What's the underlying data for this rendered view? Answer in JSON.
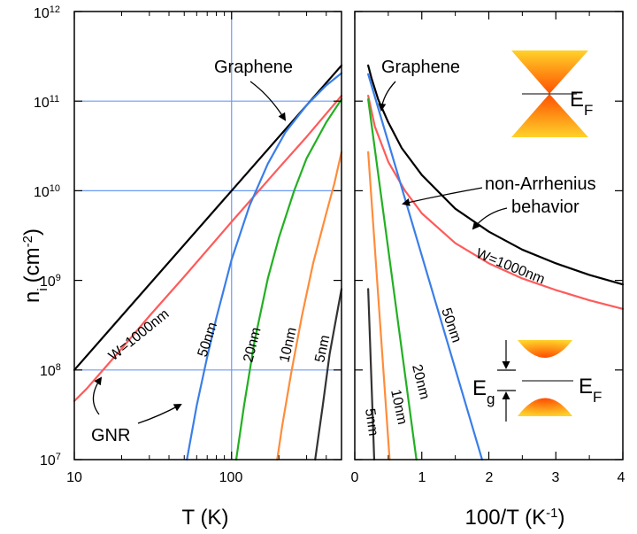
{
  "chart_data": [
    {
      "type": "line",
      "panel": "left",
      "x_scale": "log",
      "y_scale": "log",
      "xlim": [
        10,
        500
      ],
      "ylim": [
        10000000,
        1000000000000
      ],
      "xlabel": "T (K)",
      "ylabel": "n",
      "ylabel_sub": "i",
      "ylabel_unit": "(cm",
      "ylabel_exp": "-2",
      "ylabel_close": ")",
      "x_ticks": [
        {
          "value": 10,
          "label": "10"
        },
        {
          "value": 100,
          "label": "100"
        }
      ],
      "y_ticks": [
        {
          "value": 10000000,
          "base": "10",
          "exp": "7"
        },
        {
          "value": 100000000,
          "base": "10",
          "exp": "8"
        },
        {
          "value": 1000000000,
          "base": "10",
          "exp": "9"
        },
        {
          "value": 10000000000,
          "base": "10",
          "exp": "10"
        },
        {
          "value": 100000000000,
          "base": "10",
          "exp": "11"
        },
        {
          "value": 1000000000000,
          "base": "10",
          "exp": "12"
        }
      ],
      "guide_lines": {
        "vertical_x": [
          100
        ],
        "horizontal_y": [
          100000000,
          10000000000,
          100000000000
        ]
      },
      "series": [
        {
          "name": "Graphene",
          "color": "#000000",
          "points": [
            [
              10,
              100000000
            ],
            [
              500,
              250000000000
            ]
          ]
        },
        {
          "name": "W=1000nm",
          "color": "#ff5a5a",
          "points": [
            [
              10,
              45000000
            ],
            [
              12,
              62000000
            ],
            [
              15,
              97000000
            ],
            [
              20,
              173000000
            ],
            [
              30,
              400000000
            ],
            [
              50,
              1100000000
            ],
            [
              100,
              4500000000
            ],
            [
              200,
              18000000000
            ],
            [
              300,
              40000000000
            ],
            [
              500,
              115000000000
            ]
          ]
        },
        {
          "name": "50nm",
          "color": "#3a7ee8",
          "points": [
            [
              52,
              10000000
            ],
            [
              60,
              40000000
            ],
            [
              70,
              140000000
            ],
            [
              80,
              380000000
            ],
            [
              100,
              1700000000
            ],
            [
              130,
              6800000000
            ],
            [
              170,
              20000000000
            ],
            [
              220,
              45000000000
            ],
            [
              300,
              90000000000
            ],
            [
              400,
              150000000000
            ],
            [
              500,
              205000000000
            ]
          ]
        },
        {
          "name": "20nm",
          "color": "#22b022",
          "points": [
            [
              107,
              10000000
            ],
            [
              120,
              40000000
            ],
            [
              140,
              210000000
            ],
            [
              170,
              1050000000
            ],
            [
              200,
              3000000000
            ],
            [
              250,
              10000000000
            ],
            [
              300,
              23000000000
            ],
            [
              400,
              58000000000
            ],
            [
              500,
              105000000000
            ]
          ]
        },
        {
          "name": "10nm",
          "color": "#ff8c3a",
          "points": [
            [
              195,
              10000000
            ],
            [
              210,
              24000000
            ],
            [
              240,
              95000000
            ],
            [
              280,
              400000000
            ],
            [
              330,
              1550000000
            ],
            [
              400,
              5600000000
            ],
            [
              450,
              12000000000
            ],
            [
              500,
              27000000000
            ]
          ]
        },
        {
          "name": "5nm",
          "color": "#333333",
          "points": [
            [
              340,
              10000000
            ],
            [
              380,
              40000000
            ],
            [
              420,
              150000000
            ],
            [
              460,
              360000000
            ],
            [
              500,
              800000000
            ]
          ]
        }
      ],
      "annotations": {
        "graphene": "Graphene",
        "gnr": "GNR",
        "w1000": "W=1000nm",
        "nm50": "50nm",
        "nm20": "20nm",
        "nm10": "10nm",
        "nm5": "5nm"
      }
    },
    {
      "type": "line",
      "panel": "right",
      "x_scale": "linear",
      "y_scale": "log",
      "xlim": [
        0,
        4
      ],
      "ylim": [
        10000000,
        1000000000000
      ],
      "xlabel": "100/T (K",
      "xlabel_exp": "-1",
      "xlabel_close": ")",
      "x_ticks": [
        {
          "value": 0,
          "label": "0"
        },
        {
          "value": 1,
          "label": "1"
        },
        {
          "value": 2,
          "label": "2"
        },
        {
          "value": 3,
          "label": "3"
        },
        {
          "value": 4,
          "label": "4"
        }
      ],
      "series": [
        {
          "name": "Graphene",
          "color": "#000000",
          "points": [
            [
              0.2,
              250000000000
            ],
            [
              0.25,
              180000000000
            ],
            [
              0.35,
              104000000000
            ],
            [
              0.5,
              58000000000
            ],
            [
              0.7,
              30000000000
            ],
            [
              1.0,
              15000000000
            ],
            [
              1.5,
              6300000000
            ],
            [
              2.0,
              3500000000
            ],
            [
              2.5,
              2200000000
            ],
            [
              3.0,
              1550000000
            ],
            [
              3.5,
              1150000000
            ],
            [
              4.0,
              900000000
            ]
          ]
        },
        {
          "name": "W=1000nm",
          "color": "#ff5a5a",
          "points": [
            [
              0.2,
              115000000000
            ],
            [
              0.3,
              52000000000
            ],
            [
              0.5,
              21000000000
            ],
            [
              0.75,
              10000000000
            ],
            [
              1.0,
              5600000000
            ],
            [
              1.5,
              2600000000
            ],
            [
              2.0,
              1550000000
            ],
            [
              2.5,
              1050000000
            ],
            [
              3.0,
              780000000
            ],
            [
              3.5,
              600000000
            ],
            [
              4.0,
              480000000
            ]
          ]
        },
        {
          "name": "50nm",
          "color": "#3a7ee8",
          "points": [
            [
              0.2,
              200000000000
            ],
            [
              1.9,
              10000000
            ]
          ]
        },
        {
          "name": "20nm",
          "color": "#22b022",
          "points": [
            [
              0.2,
              105000000000
            ],
            [
              0.92,
              10000000
            ]
          ]
        },
        {
          "name": "10nm",
          "color": "#ff8c3a",
          "points": [
            [
              0.2,
              27000000000
            ],
            [
              0.52,
              10000000
            ]
          ]
        },
        {
          "name": "5nm",
          "color": "#333333",
          "points": [
            [
              0.2,
              800000000
            ],
            [
              0.29,
              10000000
            ]
          ]
        }
      ],
      "annotations": {
        "graphene": "Graphene",
        "non_arrhenius_1": "non-Arrhenius",
        "non_arrhenius_2": "behavior",
        "w1000": "W=1000nm",
        "nm50": "50nm",
        "nm20": "20nm",
        "nm10": "10nm",
        "nm5": "5nm",
        "ef_top": "E",
        "ef_top_sub": "F",
        "ef_bottom": "E",
        "ef_bottom_sub": "F",
        "eg": "E",
        "eg_sub": "g"
      }
    }
  ]
}
